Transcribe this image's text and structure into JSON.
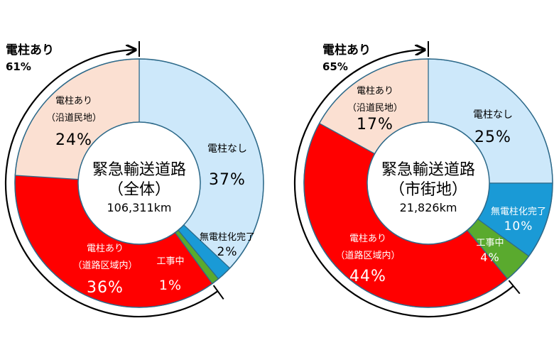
{
  "chart_data": [
    {
      "type": "pie",
      "title": "緊急輸送道路",
      "subtitle": "（全体）",
      "total": "106,311km",
      "group_label": "電柱あり",
      "group_pct": "61%",
      "slices": [
        {
          "label": "電柱なし",
          "value": 37,
          "pct": "37%",
          "color": "#cde8fa",
          "text_color": "#000000"
        },
        {
          "label": "無電柱化完了",
          "value": 2,
          "pct": "2%",
          "color": "#1a9ad6",
          "text_color": "#000000"
        },
        {
          "label": "工事中",
          "value": 1,
          "pct": "1%",
          "color": "#5aaa2e",
          "text_color": "#ffffff"
        },
        {
          "label": "電柱あり\n（道路区域内）",
          "value": 36,
          "pct": "36%",
          "color": "#ff0000",
          "text_color": "#ffffff"
        },
        {
          "label": "電柱あり\n（沿道民地）",
          "value": 24,
          "pct": "24%",
          "color": "#fbe0d2",
          "text_color": "#000000"
        }
      ]
    },
    {
      "type": "pie",
      "title": "緊急輸送道路",
      "subtitle": "（市街地）",
      "total": "21,826km",
      "group_label": "電柱あり",
      "group_pct": "65%",
      "slices": [
        {
          "label": "電柱なし",
          "value": 25,
          "pct": "25%",
          "color": "#cde8fa",
          "text_color": "#000000"
        },
        {
          "label": "無電柱化完了",
          "value": 10,
          "pct": "10%",
          "color": "#1a9ad6",
          "text_color": "#ffffff"
        },
        {
          "label": "工事中",
          "value": 4,
          "pct": "4%",
          "color": "#5aaa2e",
          "text_color": "#ffffff"
        },
        {
          "label": "電柱あり\n（道路区域内）",
          "value": 44,
          "pct": "44%",
          "color": "#ff0000",
          "text_color": "#ffffff"
        },
        {
          "label": "電柱あり\n（沿道民地）",
          "value": 17,
          "pct": "17%",
          "color": "#fbe0d2",
          "text_color": "#000000"
        }
      ]
    }
  ]
}
